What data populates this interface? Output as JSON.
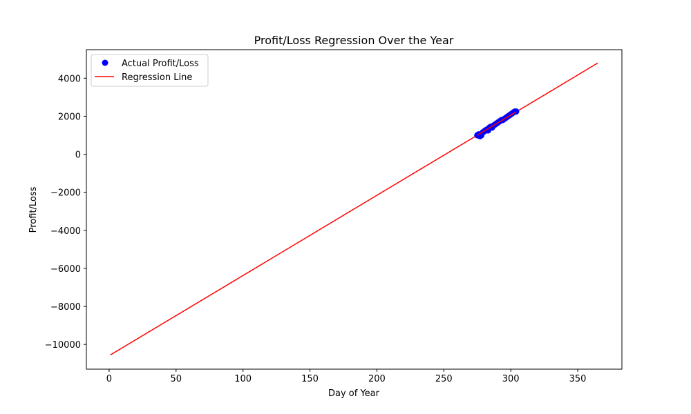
{
  "chart_data": {
    "type": "scatter",
    "title": "Profit/Loss Regression Over the Year",
    "xlabel": "Day of Year",
    "ylabel": "Profit/Loss",
    "xlim": [
      -17,
      383
    ],
    "ylim": [
      -11300,
      5500
    ],
    "xticks": [
      0,
      50,
      100,
      150,
      200,
      250,
      300,
      350
    ],
    "yticks": [
      -10000,
      -8000,
      -6000,
      -4000,
      -2000,
      0,
      2000,
      4000
    ],
    "ytick_labels": [
      "−10000",
      "−8000",
      "−6000",
      "−4000",
      "−2000",
      "0",
      "2000",
      "4000"
    ],
    "grid": false,
    "legend_position": "top-left",
    "colors": {
      "scatter": "#0000ff",
      "line": "#ff0000"
    },
    "series": [
      {
        "name": "Actual Profit/Loss",
        "type": "scatter",
        "x": [
          275,
          276,
          277,
          278,
          279,
          280,
          281,
          282,
          283,
          284,
          285,
          286,
          287,
          288,
          289,
          290,
          291,
          292,
          293,
          294,
          295,
          296,
          297,
          298,
          299,
          300,
          301,
          302,
          303,
          304
        ],
        "y": [
          1000,
          1050,
          950,
          1000,
          1150,
          1200,
          1250,
          1300,
          1250,
          1400,
          1450,
          1400,
          1500,
          1550,
          1600,
          1650,
          1700,
          1750,
          1800,
          1800,
          1850,
          1900,
          1950,
          2000,
          2050,
          2100,
          2150,
          2200,
          2250,
          2250
        ]
      },
      {
        "name": "Regression Line",
        "type": "line",
        "x": [
          1,
          365
        ],
        "y": [
          -10550,
          4800
        ]
      }
    ]
  }
}
